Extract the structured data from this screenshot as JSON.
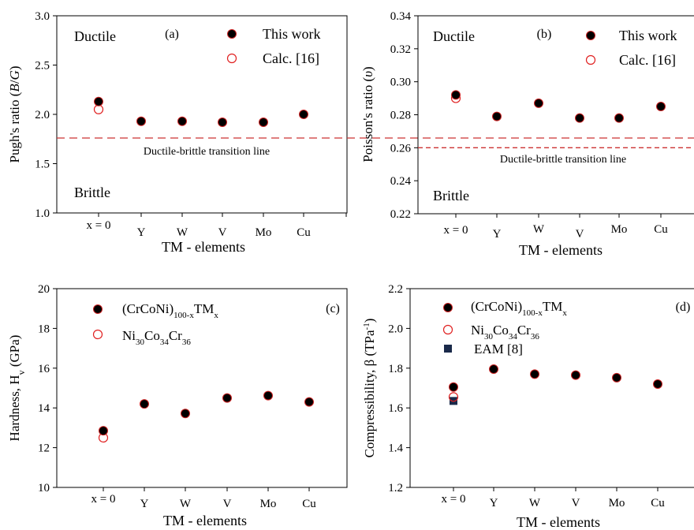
{
  "chart_data": [
    {
      "id": "a",
      "type": "scatter",
      "panel_label": "(a)",
      "xlabel": "TM - elements",
      "ylabel": "Pugh's ratio (B/G)",
      "categories": [
        "x = 0",
        "Y",
        "W",
        "V",
        "Mo",
        "Cu"
      ],
      "ylim": [
        1.0,
        3.0
      ],
      "yticks": [
        "1.0",
        "1.5",
        "2.0",
        "2.5",
        "3.0"
      ],
      "series": [
        {
          "name": "This work",
          "marker": "filled-circle",
          "x": [
            "x = 0",
            "Y",
            "W",
            "V",
            "Mo",
            "Cu"
          ],
          "values": [
            2.13,
            1.93,
            1.93,
            1.92,
            1.92,
            2.0
          ]
        },
        {
          "name": "Calc. [16]",
          "marker": "open-circle",
          "x": [
            "x = 0"
          ],
          "values": [
            2.05
          ]
        }
      ],
      "reference_line": {
        "value": 1.76,
        "label": "Ductile-brittle transition line",
        "color": "#cc3333"
      },
      "region_labels": {
        "upper": "Ductile",
        "lower": "Brittle"
      },
      "legend_position": "top-right",
      "grid": false
    },
    {
      "id": "b",
      "type": "scatter",
      "panel_label": "(b)",
      "xlabel": "TM - elements",
      "ylabel": "Poisson's ratio (υ)",
      "categories": [
        "x = 0",
        "Y",
        "W",
        "V",
        "Mo",
        "Cu"
      ],
      "ylim": [
        0.22,
        0.34
      ],
      "yticks": [
        "0.22",
        "0.24",
        "0.26",
        "0.28",
        "0.30",
        "0.32",
        "0.34"
      ],
      "series": [
        {
          "name": "This work",
          "marker": "filled-circle",
          "x": [
            "x = 0",
            "Y",
            "W",
            "V",
            "Mo",
            "Cu"
          ],
          "values": [
            0.292,
            0.279,
            0.287,
            0.278,
            0.278,
            0.285
          ]
        },
        {
          "name": "Calc. [16]",
          "marker": "open-circle",
          "x": [
            "x = 0"
          ],
          "values": [
            0.29
          ]
        }
      ],
      "reference_line": {
        "value": 0.26,
        "label": "Ductile-brittle transition line",
        "color": "#cc3333"
      },
      "region_labels": {
        "upper": "Ductile",
        "lower": "Brittle"
      },
      "legend_position": "top-right",
      "grid": false
    },
    {
      "id": "c",
      "type": "scatter",
      "panel_label": "(c)",
      "xlabel": "TM - elements",
      "ylabel": "Hardness, H_v (GPa)",
      "categories": [
        "x = 0",
        "Y",
        "W",
        "V",
        "Mo",
        "Cu"
      ],
      "ylim": [
        10,
        20
      ],
      "yticks": [
        "10",
        "12",
        "14",
        "16",
        "18",
        "20"
      ],
      "series": [
        {
          "name": "(CrCoNi)_{100-x}TM_x",
          "marker": "filled-circle",
          "x": [
            "x = 0",
            "Y",
            "W",
            "V",
            "Mo",
            "Cu"
          ],
          "values": [
            12.85,
            14.2,
            13.72,
            14.5,
            14.62,
            14.3
          ]
        },
        {
          "name": "Ni_{30}Co_{34}Cr_{36}",
          "marker": "open-circle",
          "x": [
            "x = 0"
          ],
          "values": [
            12.5
          ]
        }
      ],
      "legend_position": "top-left",
      "grid": false
    },
    {
      "id": "d",
      "type": "scatter",
      "panel_label": "(d)",
      "xlabel": "TM - elements",
      "ylabel": "Compressibility, β (TPa^-1)",
      "categories": [
        "x = 0",
        "Y",
        "W",
        "V",
        "Mo",
        "Cu"
      ],
      "ylim": [
        1.2,
        2.2
      ],
      "yticks": [
        "1.2",
        "1.4",
        "1.6",
        "1.8",
        "2.0",
        "2.2"
      ],
      "series": [
        {
          "name": "(CrCoNi)_{100-x}TM_x",
          "marker": "filled-circle",
          "x": [
            "x = 0",
            "Y",
            "W",
            "V",
            "Mo",
            "Cu"
          ],
          "values": [
            1.705,
            1.795,
            1.77,
            1.765,
            1.752,
            1.72
          ]
        },
        {
          "name": "Ni_{30}Co_{34}Cr_{36}",
          "marker": "open-circle",
          "x": [
            "x = 0"
          ],
          "values": [
            1.655
          ]
        },
        {
          "name": "EAM [8]",
          "marker": "filled-square",
          "x": [
            "x = 0"
          ],
          "values": [
            1.635
          ]
        }
      ],
      "legend_position": "top-left",
      "grid": false
    }
  ],
  "colors": {
    "axis": "#000000",
    "filled_marker": "#000000",
    "filled_marker_edge": "#cc2222",
    "open_marker": "#e02020",
    "square_marker": "#1a2a4a",
    "transition_line": "#cc3333"
  }
}
